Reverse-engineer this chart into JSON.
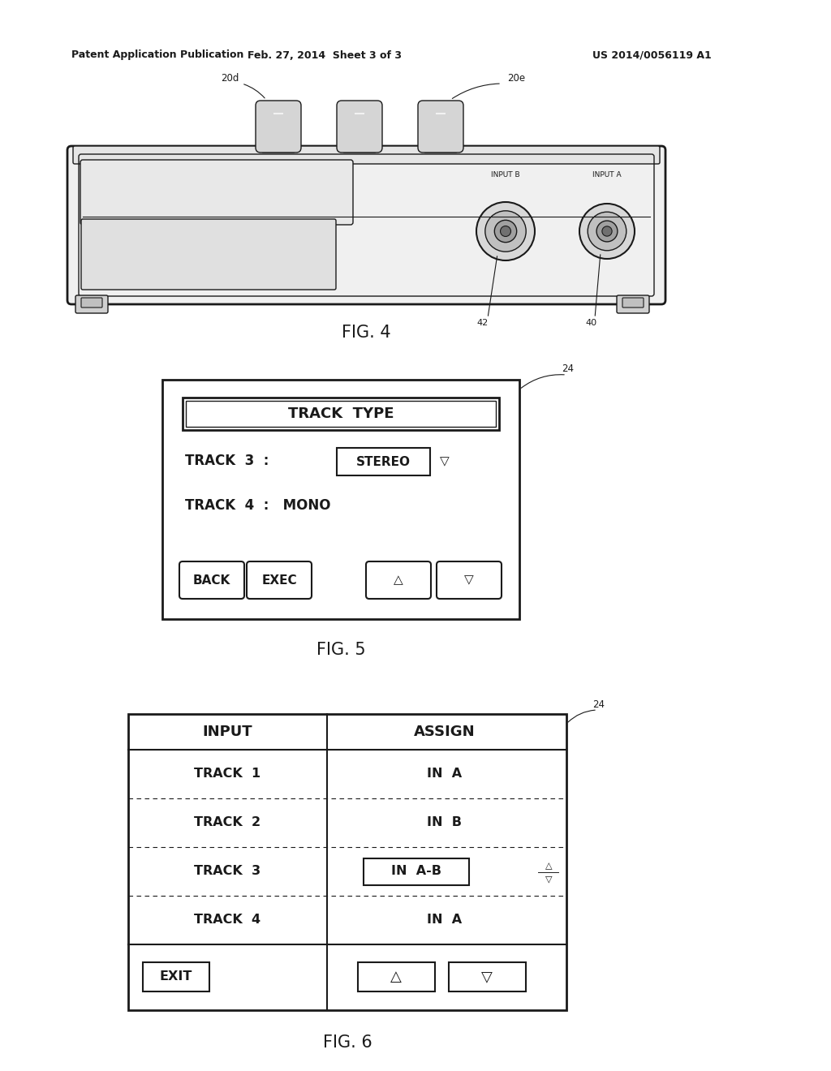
{
  "bg_color": "#ffffff",
  "text_color": "#1a1a1a",
  "header_left": "Patent Application Publication",
  "header_center": "Feb. 27, 2014  Sheet 3 of 3",
  "header_right": "US 2014/0056119 A1",
  "fig4_label": "FIG. 4",
  "fig5_label": "FIG. 5",
  "fig6_label": "FIG. 6",
  "label_20d": "20d",
  "label_20e": "20e",
  "label_42": "42",
  "label_40": "40",
  "label_inputA": "INPUT A",
  "label_inputB": "INPUT B",
  "label_24": "24"
}
